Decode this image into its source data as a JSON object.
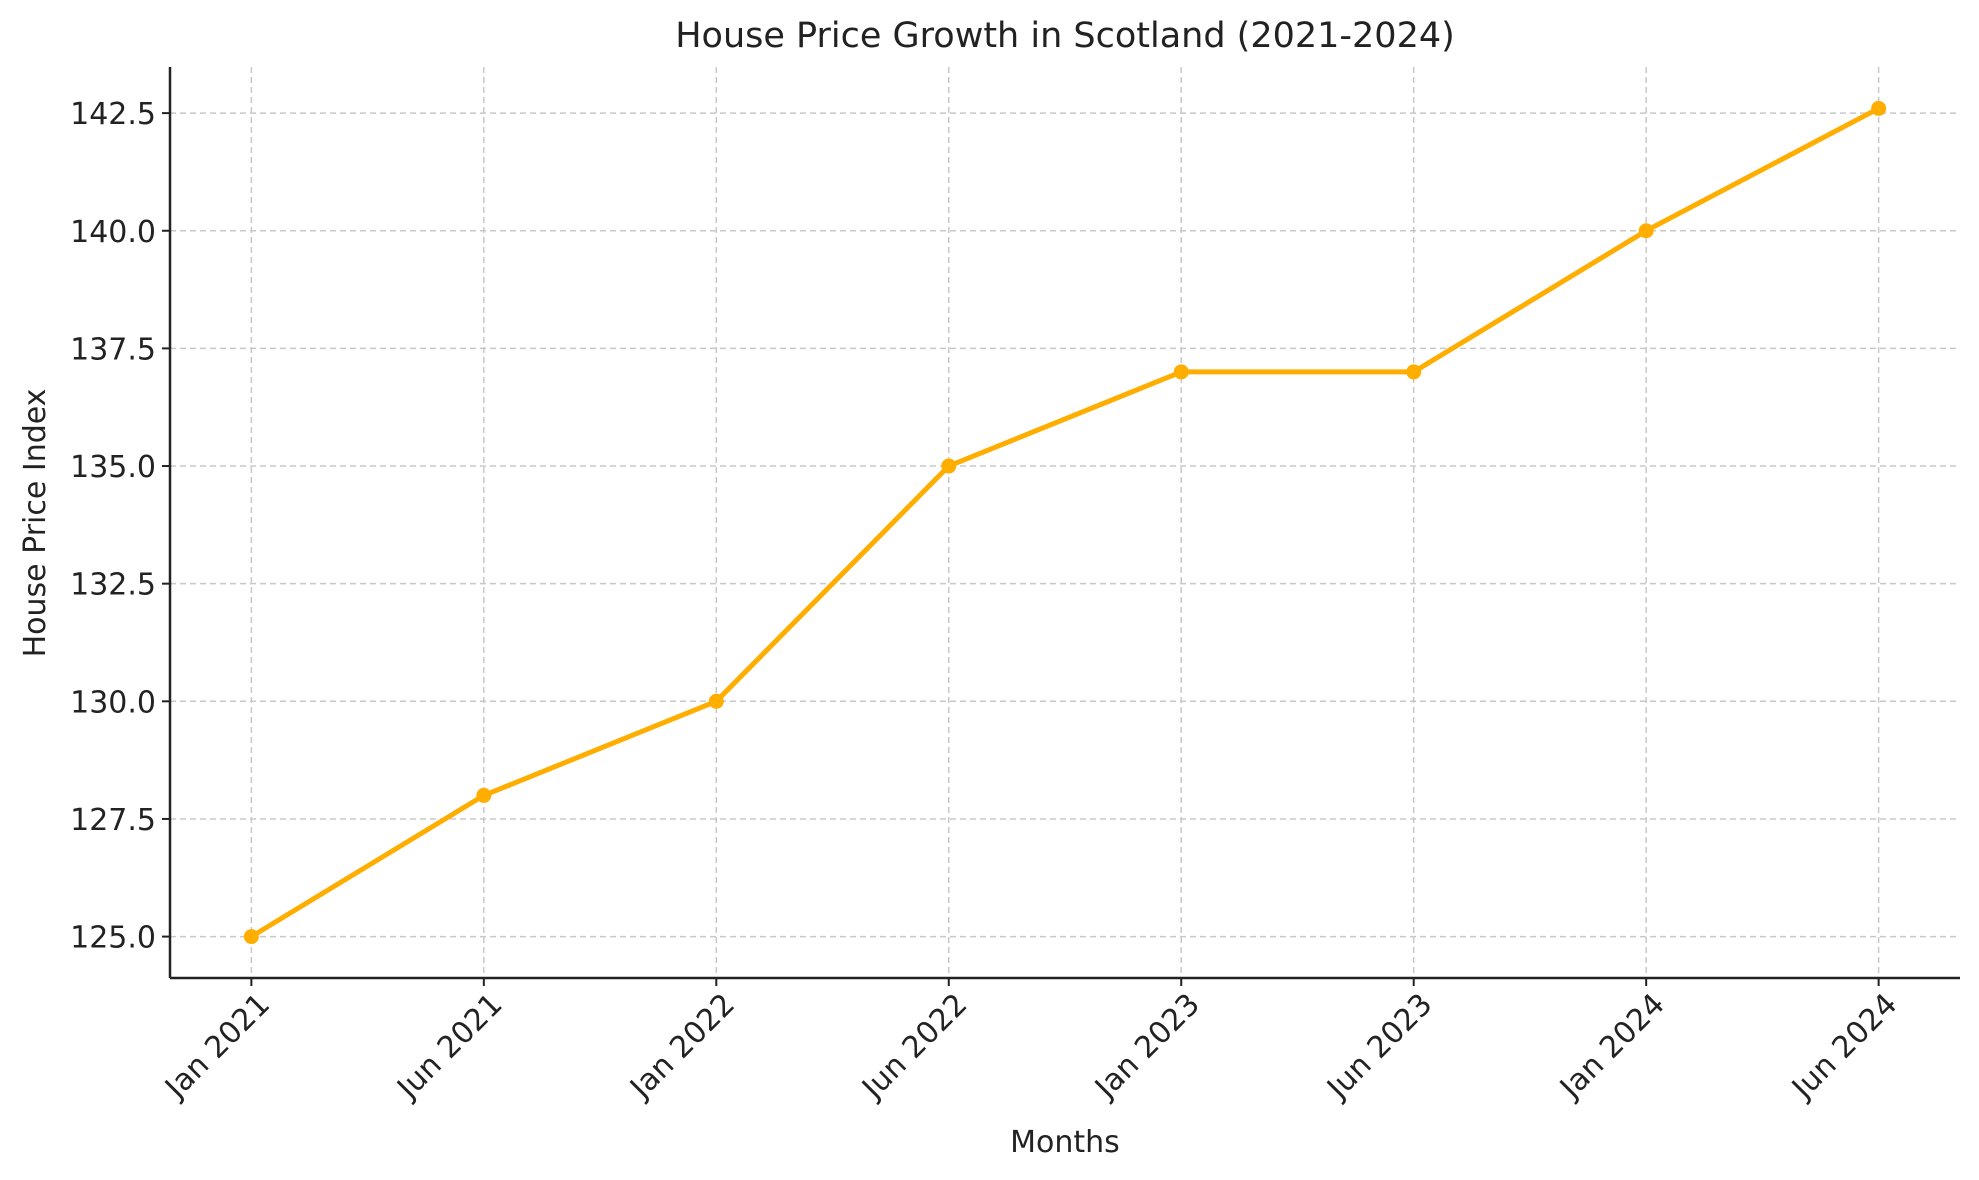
{
  "chart_data": {
    "type": "line",
    "title": "House Price Growth in Scotland (2021-2024)",
    "xlabel": "Months",
    "ylabel": "House Price Index",
    "categories": [
      "Jan 2021",
      "Jun 2021",
      "Jan 2022",
      "Jun 2022",
      "Jan 2023",
      "Jun 2023",
      "Jan 2024",
      "Jun 2024"
    ],
    "values": [
      125.0,
      128.0,
      130.0,
      135.0,
      137.0,
      137.0,
      140.0,
      142.6
    ],
    "ylim": [
      124.12,
      143.48
    ],
    "yticks": [
      "125.0",
      "127.5",
      "130.0",
      "132.5",
      "135.0",
      "137.5",
      "140.0",
      "142.5"
    ],
    "grid": true,
    "line_color": "#FFAE00",
    "marker": "circle"
  }
}
